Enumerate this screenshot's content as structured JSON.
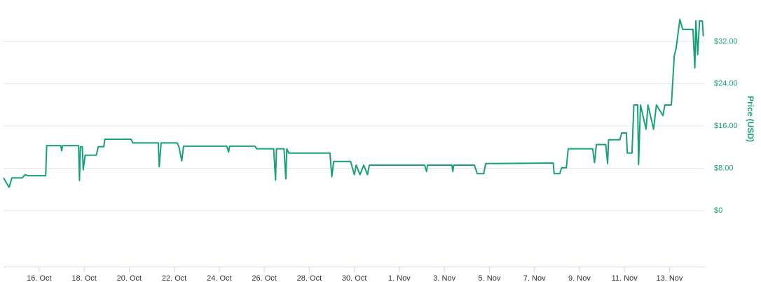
{
  "chart_data": {
    "type": "line",
    "ylabel": "Price (USD)",
    "color": "#18a07a",
    "x": [
      "10-14 10:00",
      "10-14 16:00",
      "10-14 19:00",
      "10-15 06:00",
      "10-15 09:00",
      "10-15 12:00",
      "10-16 07:00",
      "10-16 08:00",
      "10-16 23:00",
      "10-17 00:00",
      "10-17 01:00",
      "10-17 18:00",
      "10-17 19:00",
      "10-17 20:00",
      "10-17 22:00",
      "10-17 23:00",
      "10-18 01:00",
      "10-18 13:00",
      "10-18 15:00",
      "10-18 21:00",
      "10-18 22:00",
      "10-20 02:00",
      "10-20 04:00",
      "10-21 07:00",
      "10-21 08:00",
      "10-21 10:00",
      "10-22 03:00",
      "10-22 05:00",
      "10-22 08:00",
      "10-22 10:00",
      "10-24 08:00",
      "10-24 10:00",
      "10-24 11:00",
      "10-25 14:00",
      "10-25 16:00",
      "10-26 10:00",
      "10-26 12:00",
      "10-26 13:00",
      "10-26 21:00",
      "10-26 23:00",
      "10-27 00:00",
      "10-27 02:00",
      "10-28 22:00",
      "10-29 00:00",
      "10-29 02:00",
      "10-29 20:00",
      "10-30 00:00",
      "10-30 02:00",
      "10-30 06:00",
      "10-30 10:00",
      "10-30 14:00",
      "10-30 16:00",
      "11-02 03:00",
      "11-02 05:00",
      "11-02 06:00",
      "11-03 08:00",
      "11-03 09:00",
      "11-03 10:00",
      "11-04 08:00",
      "11-04 11:00",
      "11-04 18:00",
      "11-04 20:00",
      "11-07 20:00",
      "11-07 21:00",
      "11-08 03:00",
      "11-08 05:00",
      "11-08 10:00",
      "11-08 12:00",
      "11-09 14:00",
      "11-09 16:00",
      "11-09 18:00",
      "11-10 04:00",
      "11-10 06:00",
      "11-10 07:00",
      "11-10 19:00",
      "11-10 21:00",
      "11-11 02:00",
      "11-11 03:00",
      "11-11 08:00",
      "11-11 10:00",
      "11-11 14:00",
      "11-11 15:00",
      "11-11 17:00",
      "11-11 23:00",
      "11-12 01:00",
      "11-12 07:00",
      "11-12 10:00",
      "11-12 17:00",
      "11-12 19:00",
      "11-13 02:00",
      "11-13 05:00",
      "11-13 07:00",
      "11-13 11:00",
      "11-13 14:00",
      "11-14 01:00",
      "11-14 03:00",
      "11-14 04:00",
      "11-14 06:00",
      "11-14 08:00",
      "11-14 11:00",
      "11-14 12:00"
    ],
    "values": [
      6.2,
      4.4,
      6.2,
      6.2,
      6.8,
      6.6,
      6.6,
      12.3,
      12.3,
      11.3,
      12.3,
      12.3,
      5.7,
      12.1,
      12.1,
      7.7,
      10.5,
      10.5,
      12.1,
      12.1,
      13.5,
      13.5,
      12.8,
      12.8,
      8.3,
      12.8,
      12.8,
      12.1,
      9.4,
      12.2,
      12.2,
      11.1,
      12.2,
      12.2,
      11.7,
      11.7,
      5.8,
      11.7,
      11.7,
      6.0,
      11.7,
      10.9,
      10.9,
      6.4,
      9.3,
      9.3,
      6.8,
      8.6,
      6.8,
      8.6,
      6.8,
      8.6,
      8.6,
      7.4,
      8.6,
      8.6,
      7.4,
      8.6,
      8.6,
      7.0,
      7.0,
      8.9,
      9.0,
      7.0,
      7.0,
      8.1,
      8.1,
      11.7,
      11.7,
      9.1,
      12.5,
      12.5,
      8.9,
      13.4,
      13.4,
      14.7,
      14.7,
      10.9,
      10.9,
      20.0,
      20.0,
      8.7,
      20.0,
      15.4,
      20.0,
      15.4,
      20.0,
      18.0,
      20.0,
      20.0,
      29.3,
      30.6,
      36.2,
      34.3,
      34.3,
      27.0,
      35.9,
      29.5,
      35.9,
      35.9,
      33.0
    ],
    "xlim": [
      "10-14 10:00",
      "11-14 13:00"
    ],
    "xticks": [
      {
        "value": "10-16",
        "label": "16. Oct"
      },
      {
        "value": "10-18",
        "label": "18. Oct"
      },
      {
        "value": "10-20",
        "label": "20. Oct"
      },
      {
        "value": "10-22",
        "label": "22. Oct"
      },
      {
        "value": "10-24",
        "label": "24. Oct"
      },
      {
        "value": "10-26",
        "label": "26. Oct"
      },
      {
        "value": "10-28",
        "label": "28. Oct"
      },
      {
        "value": "10-30",
        "label": "30. Oct"
      },
      {
        "value": "11-01",
        "label": "1. Nov"
      },
      {
        "value": "11-03",
        "label": "3. Nov"
      },
      {
        "value": "11-05",
        "label": "5. Nov"
      },
      {
        "value": "11-07",
        "label": "7. Nov"
      },
      {
        "value": "11-09",
        "label": "9. Nov"
      },
      {
        "value": "11-11",
        "label": "11. Nov"
      },
      {
        "value": "11-13",
        "label": "13. Nov"
      }
    ],
    "ylim": [
      -10.6,
      39.2
    ],
    "yticks": [
      {
        "value": 0,
        "label": "$0"
      },
      {
        "value": 8,
        "label": "$8.00"
      },
      {
        "value": 16,
        "label": "$16.00"
      },
      {
        "value": 24,
        "label": "$24.00"
      },
      {
        "value": 32,
        "label": "$32.00"
      }
    ],
    "grid": true
  }
}
